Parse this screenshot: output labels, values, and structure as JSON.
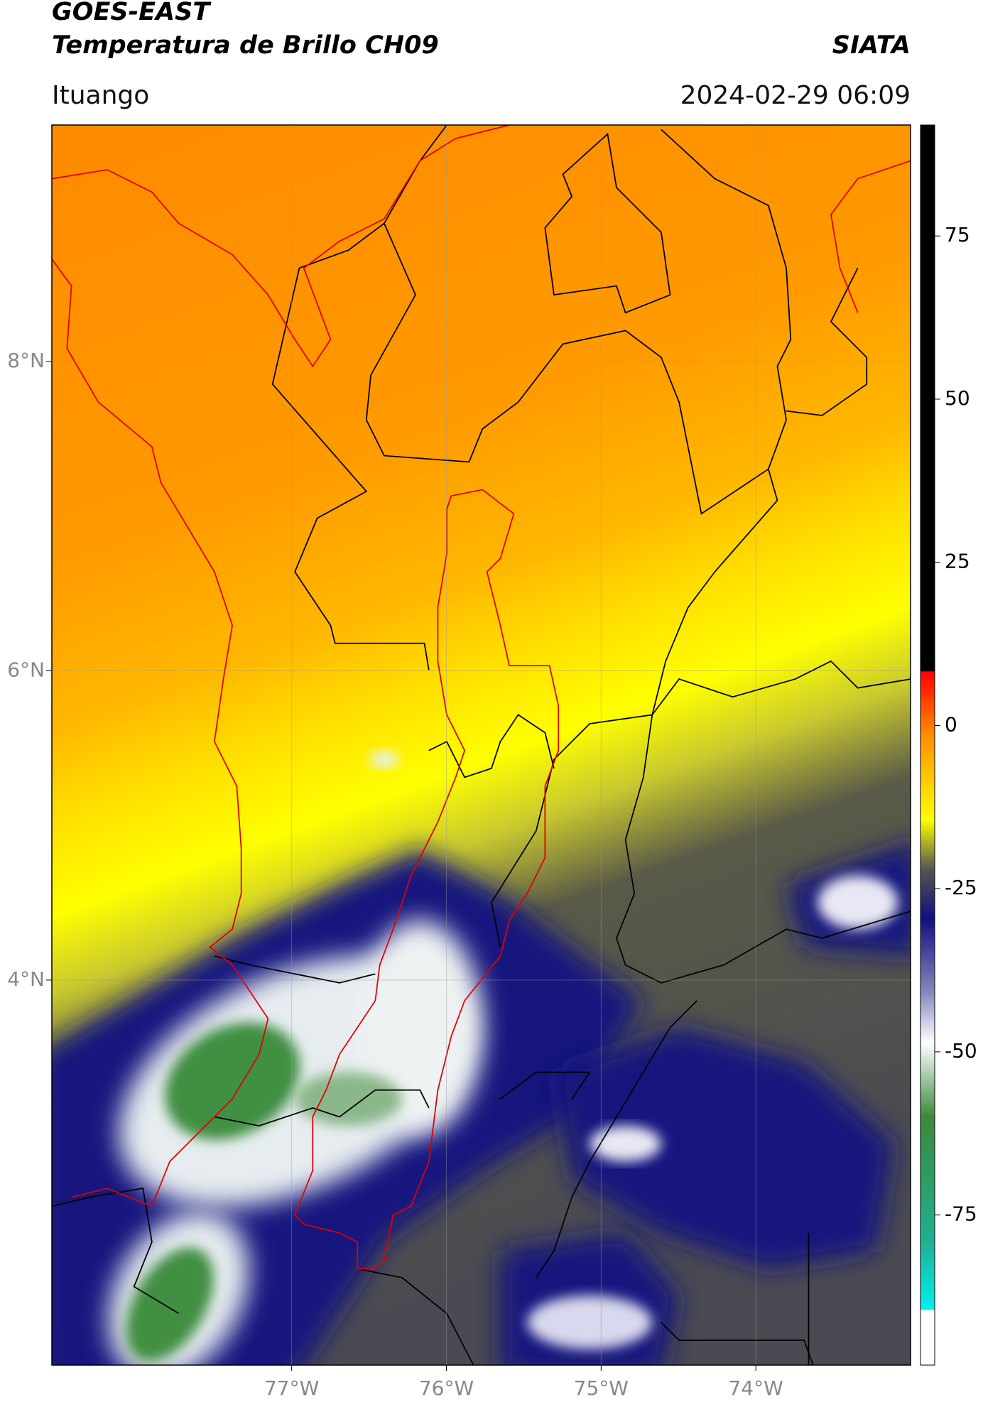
{
  "header": {
    "title": "GOES-EAST",
    "subtitle": "Temperatura de Brillo CH09",
    "source": "SIATA",
    "location": "Ituango",
    "datetime": "2024-02-29 06:09"
  },
  "map": {
    "xlim": [
      -78.55,
      -73.0
    ],
    "ylim": [
      1.51,
      9.53
    ],
    "xticks": [
      {
        "value": -77,
        "label": "77°W"
      },
      {
        "value": -76,
        "label": "76°W"
      },
      {
        "value": -75,
        "label": "75°W"
      },
      {
        "value": -74,
        "label": "74°W"
      }
    ],
    "yticks": [
      {
        "value": 8,
        "label": "8°N"
      },
      {
        "value": 6,
        "label": "6°N"
      },
      {
        "value": 4,
        "label": "4°N"
      }
    ],
    "grid": true
  },
  "colorbar": {
    "lim": [
      -98,
      92
    ],
    "ticks": [
      75,
      50,
      25,
      0,
      -25,
      -50,
      -75
    ]
  }
}
